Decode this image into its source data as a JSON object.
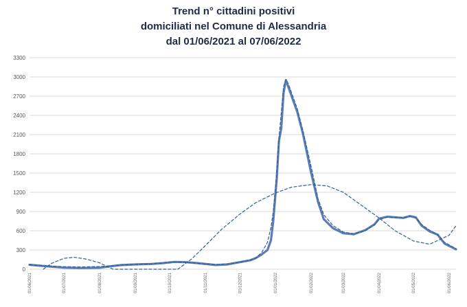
{
  "chart_data": {
    "type": "line",
    "title": [
      "Trend n° cittadini positivi",
      "domiciliati nel Comune di Alessandria",
      "dal 01/06/2021 al 07/06/2022"
    ],
    "xlabel": "",
    "ylabel": "",
    "x_start": "2021-06-01",
    "x_end": "2022-06-07",
    "xtick_labels": [
      "01/06/2021",
      "01/07/2021",
      "01/08/2021",
      "01/09/2021",
      "01/10/2021",
      "01/11/2021",
      "01/12/2021",
      "01/01/2022",
      "01/02/2022",
      "01/03/2022",
      "01/04/2022",
      "01/05/2022",
      "01/06/2022"
    ],
    "xtick_dates": [
      "2021-06-01",
      "2021-07-01",
      "2021-08-01",
      "2021-09-01",
      "2021-10-01",
      "2021-11-01",
      "2021-12-01",
      "2022-01-01",
      "2022-02-01",
      "2022-03-01",
      "2022-04-01",
      "2022-05-01",
      "2022-06-01"
    ],
    "ytick_labels": [
      "0",
      "300",
      "600",
      "900",
      "1200",
      "1500",
      "1800",
      "2100",
      "2400",
      "2700",
      "3000",
      "3300"
    ],
    "ylim": [
      0,
      3300
    ],
    "grid": true,
    "series": [
      {
        "style": "solid",
        "color": "#5b7db1",
        "points": [
          [
            "2021-06-01",
            70
          ],
          [
            "2021-06-10",
            55
          ],
          [
            "2021-06-20",
            40
          ],
          [
            "2021-07-01",
            25
          ],
          [
            "2021-07-15",
            18
          ],
          [
            "2021-08-01",
            22
          ],
          [
            "2021-08-10",
            45
          ],
          [
            "2021-08-20",
            65
          ],
          [
            "2021-09-01",
            75
          ],
          [
            "2021-09-15",
            82
          ],
          [
            "2021-09-25",
            95
          ],
          [
            "2021-10-05",
            115
          ],
          [
            "2021-10-15",
            110
          ],
          [
            "2021-10-25",
            95
          ],
          [
            "2021-11-05",
            75
          ],
          [
            "2021-11-10",
            65
          ],
          [
            "2021-11-20",
            75
          ],
          [
            "2021-12-01",
            110
          ],
          [
            "2021-12-10",
            140
          ],
          [
            "2021-12-15",
            175
          ],
          [
            "2021-12-20",
            230
          ],
          [
            "2021-12-25",
            300
          ],
          [
            "2021-12-28",
            450
          ],
          [
            "2021-12-30",
            750
          ],
          [
            "2022-01-02",
            1400
          ],
          [
            "2022-01-04",
            2000
          ],
          [
            "2022-01-06",
            2200
          ],
          [
            "2022-01-08",
            2750
          ],
          [
            "2022-01-10",
            2950
          ],
          [
            "2022-01-12",
            2850
          ],
          [
            "2022-01-14",
            2750
          ],
          [
            "2022-01-16",
            2650
          ],
          [
            "2022-01-20",
            2450
          ],
          [
            "2022-01-25",
            2100
          ],
          [
            "2022-02-01",
            1500
          ],
          [
            "2022-02-07",
            1050
          ],
          [
            "2022-02-12",
            780
          ],
          [
            "2022-02-20",
            640
          ],
          [
            "2022-03-01",
            560
          ],
          [
            "2022-03-10",
            545
          ],
          [
            "2022-03-20",
            610
          ],
          [
            "2022-03-28",
            700
          ],
          [
            "2022-04-01",
            790
          ],
          [
            "2022-04-08",
            820
          ],
          [
            "2022-04-15",
            810
          ],
          [
            "2022-04-22",
            800
          ],
          [
            "2022-04-28",
            830
          ],
          [
            "2022-05-03",
            810
          ],
          [
            "2022-05-08",
            680
          ],
          [
            "2022-05-15",
            590
          ],
          [
            "2022-05-22",
            540
          ],
          [
            "2022-05-28",
            400
          ],
          [
            "2022-06-07",
            310
          ]
        ]
      },
      {
        "style": "dashed",
        "color": "#2f5e9e",
        "points": [
          [
            "2021-06-01",
            70
          ],
          [
            "2021-06-10",
            60
          ],
          [
            "2021-06-20",
            50
          ],
          [
            "2021-07-01",
            40
          ],
          [
            "2021-07-15",
            35
          ],
          [
            "2021-08-01",
            42
          ],
          [
            "2021-08-10",
            55
          ],
          [
            "2021-08-20",
            65
          ],
          [
            "2021-09-01",
            75
          ],
          [
            "2021-09-15",
            85
          ],
          [
            "2021-09-25",
            98
          ],
          [
            "2021-10-05",
            108
          ],
          [
            "2021-10-15",
            104
          ],
          [
            "2021-10-25",
            92
          ],
          [
            "2021-11-05",
            78
          ],
          [
            "2021-11-10",
            72
          ],
          [
            "2021-11-20",
            82
          ],
          [
            "2021-12-01",
            110
          ],
          [
            "2021-12-10",
            140
          ],
          [
            "2021-12-15",
            180
          ],
          [
            "2021-12-20",
            260
          ],
          [
            "2021-12-25",
            420
          ],
          [
            "2021-12-28",
            650
          ],
          [
            "2021-12-30",
            900
          ],
          [
            "2022-01-02",
            1500
          ],
          [
            "2022-01-04",
            2050
          ],
          [
            "2022-01-06",
            2450
          ],
          [
            "2022-01-08",
            2850
          ],
          [
            "2022-01-10",
            2960
          ],
          [
            "2022-01-12",
            2900
          ],
          [
            "2022-01-14",
            2800
          ],
          [
            "2022-01-16",
            2700
          ],
          [
            "2022-01-20",
            2500
          ],
          [
            "2022-01-25",
            2150
          ],
          [
            "2022-02-01",
            1600
          ],
          [
            "2022-02-07",
            1100
          ],
          [
            "2022-02-12",
            850
          ],
          [
            "2022-02-20",
            680
          ],
          [
            "2022-03-01",
            580
          ],
          [
            "2022-03-10",
            555
          ],
          [
            "2022-03-20",
            600
          ],
          [
            "2022-03-28",
            690
          ],
          [
            "2022-04-01",
            770
          ],
          [
            "2022-04-08",
            810
          ],
          [
            "2022-04-15",
            810
          ],
          [
            "2022-04-22",
            805
          ],
          [
            "2022-04-28",
            820
          ],
          [
            "2022-05-03",
            800
          ],
          [
            "2022-05-08",
            700
          ],
          [
            "2022-05-15",
            610
          ],
          [
            "2022-05-22",
            540
          ],
          [
            "2022-05-28",
            420
          ],
          [
            "2022-06-07",
            320
          ]
        ]
      },
      {
        "style": "dashed",
        "color": "#2f5e9e",
        "points": [
          [
            "2021-06-13",
            0
          ],
          [
            "2021-06-20",
            90
          ],
          [
            "2021-07-01",
            170
          ],
          [
            "2021-07-10",
            185
          ],
          [
            "2021-07-20",
            160
          ],
          [
            "2021-08-01",
            100
          ],
          [
            "2021-08-10",
            20
          ],
          [
            "2021-08-13",
            0
          ],
          [
            "2021-10-08",
            0
          ],
          [
            "2021-10-20",
            160
          ],
          [
            "2021-11-01",
            370
          ],
          [
            "2021-11-15",
            620
          ],
          [
            "2021-12-01",
            860
          ],
          [
            "2021-12-15",
            1040
          ],
          [
            "2022-01-01",
            1190
          ],
          [
            "2022-01-15",
            1280
          ],
          [
            "2022-02-01",
            1320
          ],
          [
            "2022-02-15",
            1300
          ],
          [
            "2022-03-01",
            1200
          ],
          [
            "2022-03-15",
            1020
          ],
          [
            "2022-04-01",
            800
          ],
          [
            "2022-04-15",
            600
          ],
          [
            "2022-05-01",
            440
          ],
          [
            "2022-05-15",
            390
          ],
          [
            "2022-06-01",
            530
          ],
          [
            "2022-06-07",
            680
          ]
        ]
      }
    ]
  }
}
